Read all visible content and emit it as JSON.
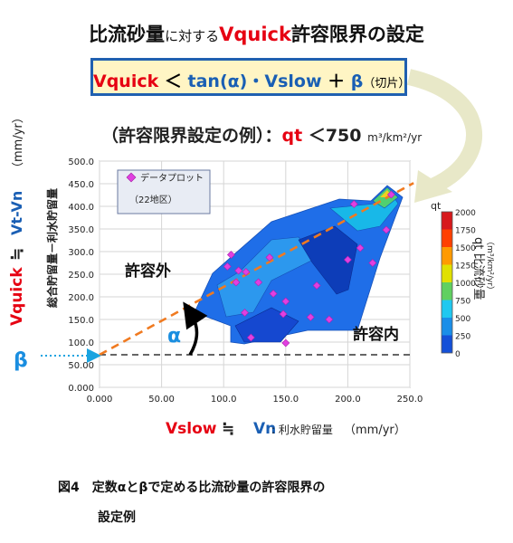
{
  "title": {
    "part1": "比流砂量",
    "part2": "に対する",
    "part3": "Vquick",
    "part4": "許容限界の設定"
  },
  "formula": {
    "vquick": "Vquick",
    "lt": "＜",
    "tan": "tan(α)・Vslow",
    "plus": "＋",
    "beta": "β",
    "beta_note": "（切片）"
  },
  "example": {
    "prefix": "（許容限界設定の例）：",
    "qt": "qt",
    "cond": "＜750",
    "unit": "m³/km²/yr"
  },
  "legend": {
    "entry": "データプロット",
    "count": "（22地区）"
  },
  "y_axis_labels": {
    "vquick": "Vquick",
    "approx": "≒",
    "vt": "Vt-Vn",
    "unit": "（mm/yr）",
    "desc": "総合貯留量－利水貯留量"
  },
  "x_axis_labels": {
    "vslow": "Vslow",
    "approx": "≒",
    "vn": "Vn",
    "desc": ": 利水貯留量",
    "unit": "（mm/yr）"
  },
  "regions": {
    "outside": "許容外",
    "inside": "許容内"
  },
  "alpha": "α",
  "beta": "β",
  "colorbar": {
    "title": "qt",
    "label": "qt 比流砂量",
    "unit": "（m³/km²/yr）",
    "ticks": [
      "2000",
      "1750",
      "1500",
      "1250",
      "1000",
      "750",
      "500",
      "250",
      "0"
    ]
  },
  "caption": {
    "line1": "図4　定数αとβで定める比流砂量の許容限界の",
    "line2": "設定例"
  },
  "chart_data": {
    "type": "scatter",
    "xlim": [
      0,
      250
    ],
    "ylim": [
      0,
      500
    ],
    "x_ticks": [
      "0.000",
      "50.00",
      "100.0",
      "150.0",
      "200.0",
      "250.0"
    ],
    "y_ticks": [
      "0.000",
      "50.00",
      "100.0",
      "150.0",
      "200.0",
      "250.0",
      "300.0",
      "350.0",
      "400.0",
      "450.0",
      "500.0"
    ],
    "grid": true,
    "legend_position": "top-left",
    "points": [
      {
        "x": 103,
        "y": 267
      },
      {
        "x": 106,
        "y": 293
      },
      {
        "x": 110,
        "y": 232
      },
      {
        "x": 112,
        "y": 258
      },
      {
        "x": 118,
        "y": 255
      },
      {
        "x": 128,
        "y": 232
      },
      {
        "x": 117,
        "y": 165
      },
      {
        "x": 137,
        "y": 287
      },
      {
        "x": 140,
        "y": 207
      },
      {
        "x": 150,
        "y": 190
      },
      {
        "x": 148,
        "y": 162
      },
      {
        "x": 170,
        "y": 155
      },
      {
        "x": 185,
        "y": 150
      },
      {
        "x": 175,
        "y": 225
      },
      {
        "x": 200,
        "y": 282
      },
      {
        "x": 210,
        "y": 308
      },
      {
        "x": 220,
        "y": 275
      },
      {
        "x": 231,
        "y": 348
      },
      {
        "x": 235,
        "y": 426
      },
      {
        "x": 205,
        "y": 405
      },
      {
        "x": 122,
        "y": 110
      },
      {
        "x": 150,
        "y": 98
      }
    ],
    "allowable_line": {
      "intercept": 72,
      "slope": 1.5
    },
    "baseline": 72
  }
}
